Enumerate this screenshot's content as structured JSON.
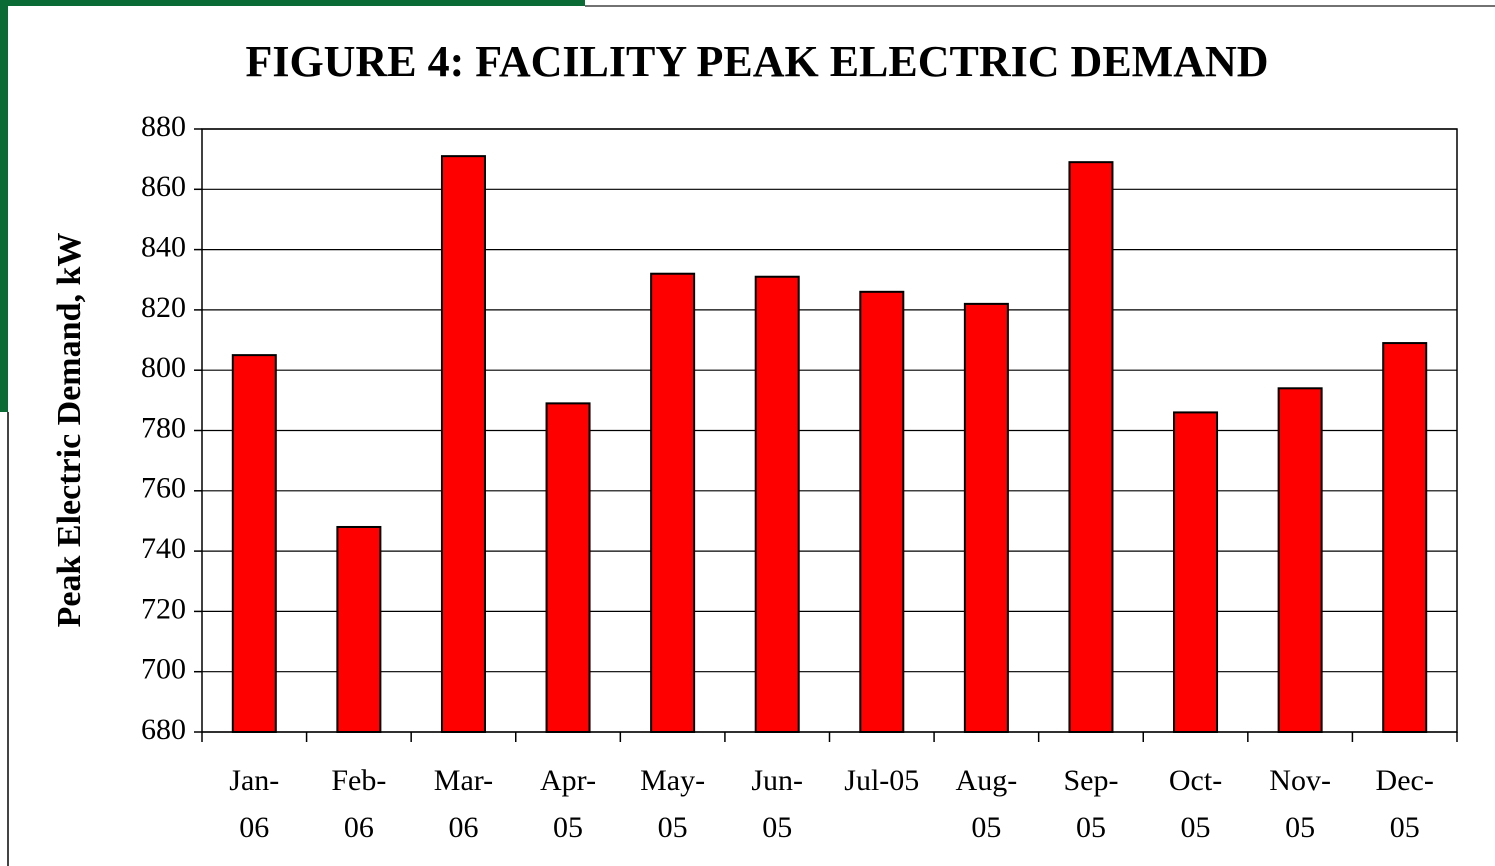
{
  "chart_data": {
    "type": "bar",
    "title": "FIGURE 4: FACILITY PEAK ELECTRIC DEMAND",
    "y_label": "Peak Electric Demand, kW",
    "categories": [
      "Jan-06",
      "Feb-06",
      "Mar-06",
      "Apr-05",
      "May-05",
      "Jun-05",
      "Jul-05",
      "Aug-05",
      "Sep-05",
      "Oct-05",
      "Nov-05",
      "Dec-05"
    ],
    "values": [
      805,
      748,
      871,
      789,
      832,
      831,
      826,
      822,
      869,
      786,
      794,
      809
    ],
    "color": "#ff0000",
    "ylim": [
      680,
      880
    ],
    "yticks": [
      680,
      700,
      720,
      740,
      760,
      780,
      800,
      820,
      840,
      860,
      880
    ],
    "grid": true
  }
}
